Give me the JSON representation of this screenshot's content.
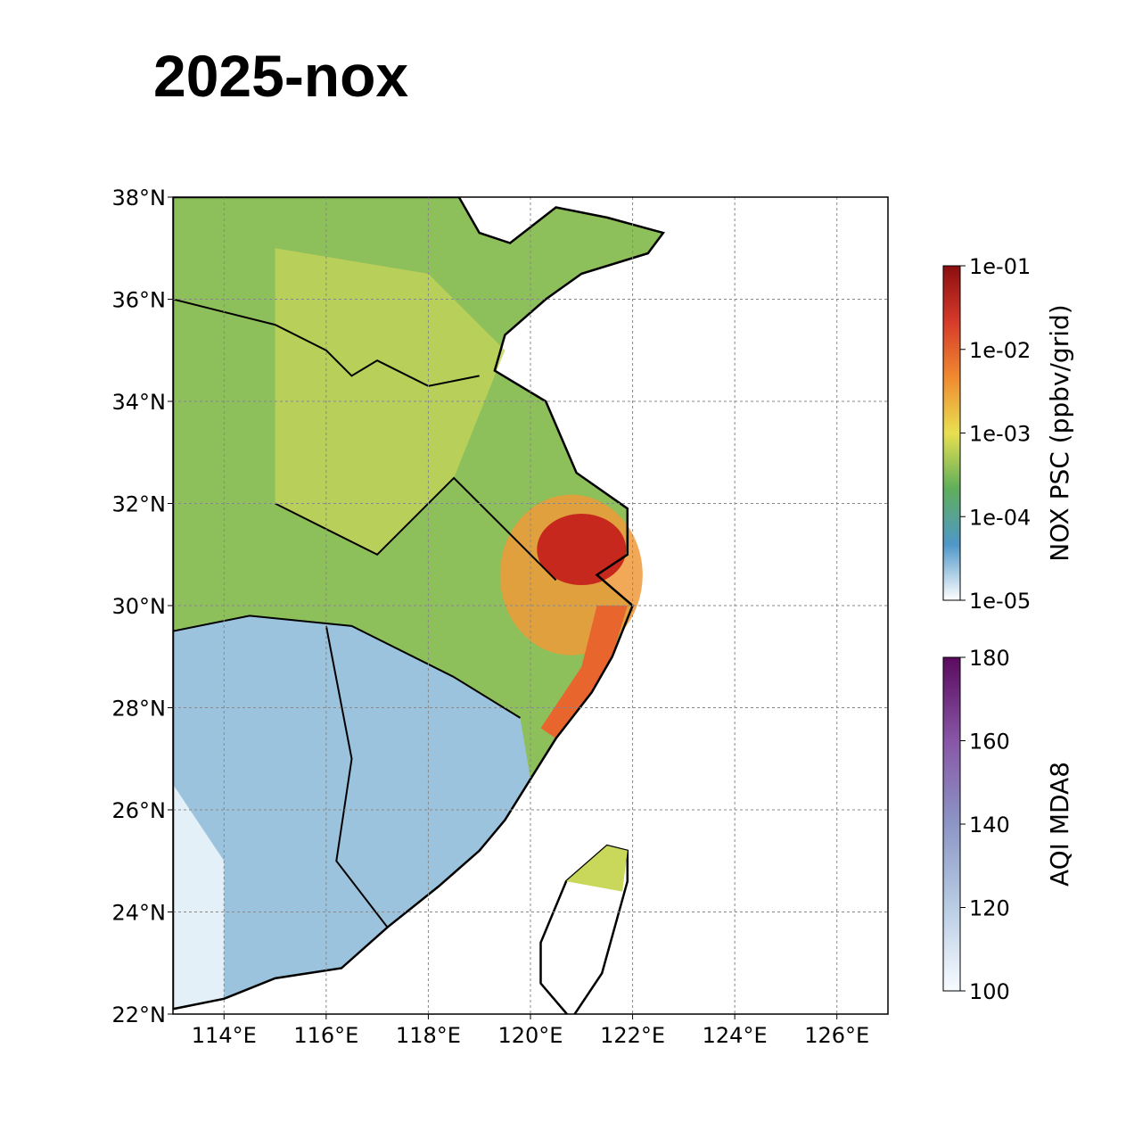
{
  "title": "2025-nox",
  "map": {
    "xlim": [
      113,
      127
    ],
    "ylim": [
      22,
      38
    ],
    "grid": true,
    "xticks": [
      {
        "value": 114,
        "label": "114°E"
      },
      {
        "value": 116,
        "label": "116°E"
      },
      {
        "value": 118,
        "label": "118°E"
      },
      {
        "value": 120,
        "label": "120°E"
      },
      {
        "value": 122,
        "label": "122°E"
      },
      {
        "value": 124,
        "label": "124°E"
      },
      {
        "value": 126,
        "label": "126°E"
      }
    ],
    "yticks": [
      {
        "value": 22,
        "label": "22°N"
      },
      {
        "value": 24,
        "label": "24°N"
      },
      {
        "value": 26,
        "label": "26°N"
      },
      {
        "value": 28,
        "label": "28°N"
      },
      {
        "value": 30,
        "label": "30°N"
      },
      {
        "value": 32,
        "label": "32°N"
      },
      {
        "value": 34,
        "label": "34°N"
      },
      {
        "value": 36,
        "label": "36°N"
      },
      {
        "value": 38,
        "label": "38°N"
      }
    ]
  },
  "colorbars": [
    {
      "label": "NOX PSC (ppbv/grid)",
      "log": true,
      "lim": [
        1e-05,
        0.1
      ],
      "ticks": [
        {
          "value": 1e-05,
          "label": "1e-05"
        },
        {
          "value": 0.0001,
          "label": "1e-04"
        },
        {
          "value": 0.001,
          "label": "1e-03"
        },
        {
          "value": 0.01,
          "label": "1e-02"
        },
        {
          "value": 0.1,
          "label": "1e-01"
        }
      ],
      "colors": [
        "#ffffff",
        "#4f97c9",
        "#5fae5b",
        "#e8e050",
        "#f08a30",
        "#d63a2a",
        "#8b0e10"
      ]
    },
    {
      "label": "AQI MDA8",
      "log": false,
      "lim": [
        100,
        180
      ],
      "ticks": [
        100,
        120,
        140,
        160,
        180
      ],
      "colors": [
        "#f7fbff",
        "#b9cde4",
        "#8c96c6",
        "#8856a7",
        "#5a0a5e"
      ]
    }
  ]
}
